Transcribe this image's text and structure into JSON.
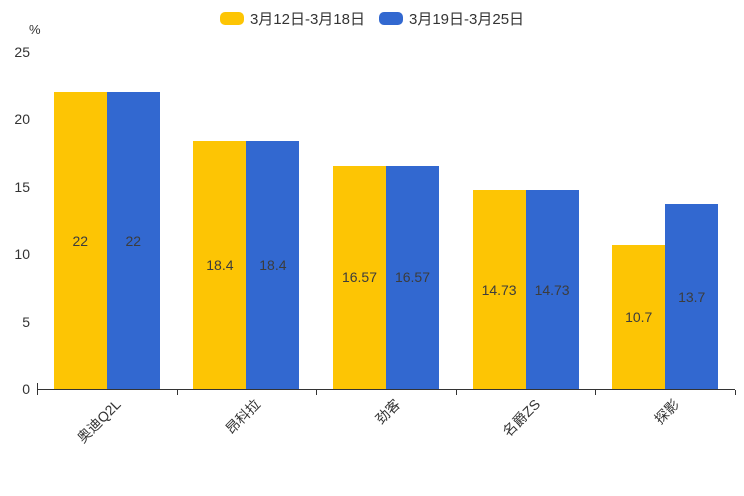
{
  "chart_data": {
    "type": "bar",
    "title": "",
    "xlabel": "",
    "ylabel": "%",
    "unit_label": "%",
    "categories": [
      "奥迪Q2L",
      "昂科拉",
      "劲客",
      "名爵ZS",
      "探影"
    ],
    "series": [
      {
        "name": "3月12日-3月18日",
        "color": "#FDC504",
        "values": [
          22,
          18.4,
          16.57,
          14.73,
          10.7
        ]
      },
      {
        "name": "3月19日-3月25日",
        "color": "#3268D0",
        "values": [
          22,
          18.4,
          16.57,
          14.73,
          13.7
        ]
      }
    ],
    "ylim": [
      0,
      25
    ],
    "yticks": [
      0,
      5,
      10,
      15,
      20,
      25
    ],
    "grid": false,
    "legend_position": "top-center",
    "value_label_position": "inside-middle",
    "value_label_color": "#3c3c3c",
    "axis_color": "#333333",
    "category_label_rotation": -45
  }
}
